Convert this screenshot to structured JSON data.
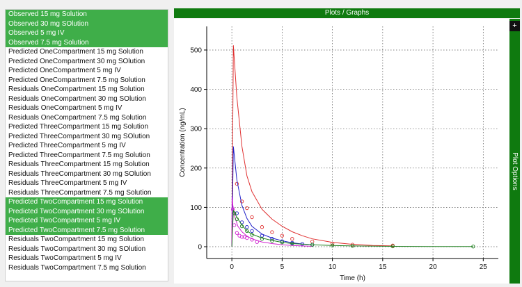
{
  "list": {
    "items": [
      {
        "label": "Observed 15 mg Solution",
        "selected": true
      },
      {
        "label": "Observed 30 mg SOlution",
        "selected": true
      },
      {
        "label": "Observed 5 mg IV",
        "selected": true
      },
      {
        "label": "Observed 7.5 mg Solution",
        "selected": true
      },
      {
        "label": "Predicted OneCompartment 15 mg Solution",
        "selected": false
      },
      {
        "label": "Predicted OneCompartment 30 mg SOlution",
        "selected": false
      },
      {
        "label": "Predicted OneCompartment 5 mg IV",
        "selected": false
      },
      {
        "label": "Predicted OneCompartment 7.5 mg Solution",
        "selected": false
      },
      {
        "label": "Residuals OneCompartment 15 mg Solution",
        "selected": false
      },
      {
        "label": "Residuals OneCompartment 30 mg SOlution",
        "selected": false
      },
      {
        "label": "Residuals OneCompartment 5 mg IV",
        "selected": false
      },
      {
        "label": "Residuals OneCompartment 7.5 mg Solution",
        "selected": false
      },
      {
        "label": "Predicted ThreeCompartment 15 mg Solution",
        "selected": false
      },
      {
        "label": "Predicted ThreeCompartment 30 mg SOlution",
        "selected": false
      },
      {
        "label": "Predicted ThreeCompartment 5 mg IV",
        "selected": false
      },
      {
        "label": "Predicted ThreeCompartment 7.5 mg Solution",
        "selected": false
      },
      {
        "label": "Residuals ThreeCompartment 15 mg Solution",
        "selected": false
      },
      {
        "label": "Residuals ThreeCompartment 30 mg SOlution",
        "selected": false
      },
      {
        "label": "Residuals ThreeCompartment 5 mg IV",
        "selected": false
      },
      {
        "label": "Residuals ThreeCompartment 7.5 mg Solution",
        "selected": false
      },
      {
        "label": "Predicted TwoCompartment 15 mg Solution",
        "selected": true
      },
      {
        "label": "Predicted TwoCompartment 30 mg SOlution",
        "selected": true
      },
      {
        "label": "Predicted TwoCompartment 5 mg IV",
        "selected": true
      },
      {
        "label": "Predicted TwoCompartment 7.5 mg Solution",
        "selected": true
      },
      {
        "label": "Residuals TwoCompartment 15 mg Solution",
        "selected": false
      },
      {
        "label": "Residuals TwoCompartment 30 mg SOlution",
        "selected": false
      },
      {
        "label": "Residuals TwoCompartment 5 mg IV",
        "selected": false
      },
      {
        "label": "Residuals TwoCompartment 7.5 mg Solution",
        "selected": false
      }
    ]
  },
  "header": {
    "title": "Plots / Graphs"
  },
  "options": {
    "label": "Plot Options",
    "plus": "+"
  },
  "colors": {
    "header_green": "#0f7a0f",
    "selected_green": "#3fae49",
    "series_30mg": "#e03030",
    "series_15mg": "#2020c8",
    "series_5mg_iv": "#d020d0",
    "series_7_5mg": "#208020"
  },
  "chart_data": {
    "type": "line",
    "xlabel": "Time (h)",
    "ylabel": "Concentration (ng/mL)",
    "xlim": [
      -2.5,
      26.5
    ],
    "ylim": [
      -30,
      560
    ],
    "xticks": [
      0,
      5,
      10,
      15,
      20,
      25
    ],
    "yticks": [
      0,
      100,
      200,
      300,
      400,
      500
    ],
    "grid": true,
    "series": [
      {
        "color": "#e03030",
        "line": {
          "x": [
            0,
            0.15,
            0.5,
            1,
            1.5,
            2,
            3,
            4,
            5,
            6,
            7,
            8,
            10,
            12,
            14,
            16
          ],
          "y": [
            0,
            512,
            380,
            255,
            180,
            140,
            95,
            70,
            52,
            38,
            28,
            20,
            11,
            6,
            3,
            2
          ]
        },
        "observed": {
          "x": [
            0.5,
            1,
            1.5,
            2,
            3,
            4,
            5,
            6,
            8,
            10,
            12,
            16
          ],
          "y": [
            160,
            115,
            98,
            75,
            50,
            37,
            28,
            20,
            13,
            8,
            5,
            3
          ]
        }
      },
      {
        "color": "#2020c8",
        "line": {
          "x": [
            0,
            0.15,
            0.5,
            1,
            1.5,
            2,
            3,
            4,
            5,
            6,
            7,
            8
          ],
          "y": [
            0,
            255,
            170,
            105,
            72,
            52,
            32,
            22,
            15,
            10,
            7,
            5
          ]
        },
        "observed": {
          "x": [
            0.5,
            1,
            1.5,
            2,
            3,
            4,
            5,
            6,
            7,
            8
          ],
          "y": [
            85,
            62,
            50,
            40,
            28,
            20,
            14,
            10,
            7,
            5
          ]
        }
      },
      {
        "color": "#d020d0",
        "line": {
          "x": [
            0,
            0.02,
            0.1,
            0.3,
            0.6,
            1,
            1.5,
            2,
            3,
            4,
            5,
            6,
            8
          ],
          "y": [
            0,
            128,
            105,
            75,
            52,
            38,
            27,
            20,
            12,
            8,
            5,
            3,
            1
          ]
        },
        "observed": {
          "x": [
            0.1,
            0.25,
            0.5,
            0.75,
            1,
            1.25,
            1.5,
            2,
            2.5
          ],
          "y": [
            95,
            55,
            35,
            28,
            25,
            25,
            22,
            18,
            12
          ]
        }
      },
      {
        "color": "#208020",
        "line": {
          "x": [
            0,
            0.15,
            0.5,
            1,
            1.5,
            2,
            3,
            4,
            5,
            6,
            8,
            10,
            12,
            16,
            20,
            24
          ],
          "y": [
            0,
            92,
            75,
            55,
            40,
            32,
            22,
            16,
            11,
            8,
            5,
            3,
            2,
            1,
            0.5,
            0.3
          ]
        },
        "observed": {
          "x": [
            0.25,
            0.5,
            1,
            1.5,
            2,
            3,
            4,
            5,
            6,
            8,
            10,
            12,
            16,
            24
          ],
          "y": [
            85,
            70,
            52,
            40,
            30,
            20,
            15,
            11,
            8,
            5,
            3,
            2,
            1,
            0.5
          ]
        }
      }
    ]
  }
}
